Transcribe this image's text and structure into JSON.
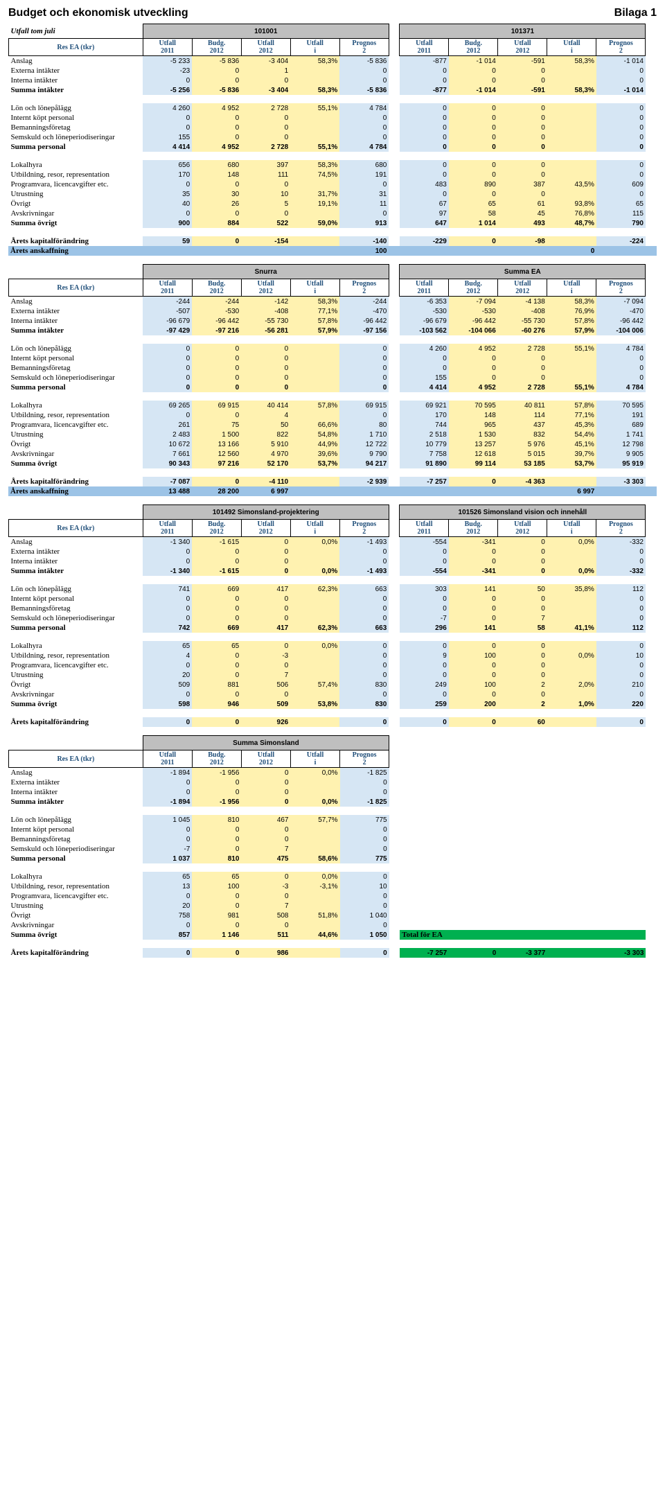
{
  "page": {
    "title": "Budget och ekonomisk utveckling",
    "annex": "Bilaga 1",
    "subtitle": "Utfall tom juli"
  },
  "headers": {
    "row_header": "Res EA (tkr)",
    "cols5": [
      "Utfall 2011",
      "Budg. 2012",
      "Utfall 2012",
      "Utfall i % av budget",
      "Prognos 2"
    ]
  },
  "row_labels": {
    "anslag": "Anslag",
    "ext": "Externa intäkter",
    "int": "Interna intäkter",
    "sumint": "Summa intäkter",
    "lon": "Lön och lönepålägg",
    "ikp": "Internt köpt personal",
    "bem": "Bemanningsföretag",
    "sem": "Semskuld och löneperiodiseringar",
    "sump": "Summa personal",
    "lok": "Lokalhyra",
    "utb": "Utbildning, resor, representation",
    "prog": "Programvara, licencavgifter etc.",
    "utr": "Utrustning",
    "ovr": "Övrigt",
    "avsk": "Avskrivningar",
    "sumo": "Summa övrigt",
    "kap": "Årets kapitalförändring",
    "ansk": "Årets anskaffning",
    "total": "Total för EA"
  },
  "groups": {
    "g101001": "101001",
    "g101371": "101371",
    "snurra": "Snurra",
    "summaEA": "Summa EA",
    "g101492": "101492 Simonsland-projektering",
    "g101526": "101526 Simonsland vision och innehåll",
    "sumsim": "Summa Simonsland"
  },
  "t1": {
    "left": {
      "anslag": [
        "-5 233",
        "-5 836",
        "-3 404",
        "58,3%",
        "-5 836"
      ],
      "ext": [
        "-23",
        "0",
        "1",
        "",
        "0"
      ],
      "int": [
        "0",
        "0",
        "0",
        "",
        "0"
      ],
      "sumint": [
        "-5 256",
        "-5 836",
        "-3 404",
        "58,3%",
        "-5 836"
      ],
      "lon": [
        "4 260",
        "4 952",
        "2 728",
        "55,1%",
        "4 784"
      ],
      "ikp": [
        "0",
        "0",
        "0",
        "",
        "0"
      ],
      "bem": [
        "0",
        "0",
        "0",
        "",
        "0"
      ],
      "sem": [
        "155",
        "0",
        "0",
        "",
        "0"
      ],
      "sump": [
        "4 414",
        "4 952",
        "2 728",
        "55,1%",
        "4 784"
      ],
      "lok": [
        "656",
        "680",
        "397",
        "58,3%",
        "680"
      ],
      "utb": [
        "170",
        "148",
        "111",
        "74,5%",
        "191"
      ],
      "prog": [
        "0",
        "0",
        "0",
        "",
        "0"
      ],
      "utr": [
        "35",
        "30",
        "10",
        "31,7%",
        "31"
      ],
      "ovr": [
        "40",
        "26",
        "5",
        "19,1%",
        "11"
      ],
      "avsk": [
        "0",
        "0",
        "0",
        "",
        "0"
      ],
      "sumo": [
        "900",
        "884",
        "522",
        "59,0%",
        "913"
      ],
      "kap": [
        "59",
        "0",
        "-154",
        "",
        "-140"
      ]
    },
    "right": {
      "anslag": [
        "-877",
        "-1 014",
        "-591",
        "58,3%",
        "-1 014"
      ],
      "ext": [
        "0",
        "0",
        "0",
        "",
        "0"
      ],
      "int": [
        "0",
        "0",
        "0",
        "",
        "0"
      ],
      "sumint": [
        "-877",
        "-1 014",
        "-591",
        "58,3%",
        "-1 014"
      ],
      "lon": [
        "0",
        "0",
        "0",
        "",
        "0"
      ],
      "ikp": [
        "0",
        "0",
        "0",
        "",
        "0"
      ],
      "bem": [
        "0",
        "0",
        "0",
        "",
        "0"
      ],
      "sem": [
        "0",
        "0",
        "0",
        "",
        "0"
      ],
      "sump": [
        "0",
        "0",
        "0",
        "",
        "0"
      ],
      "lok": [
        "0",
        "0",
        "0",
        "",
        "0"
      ],
      "utb": [
        "0",
        "0",
        "0",
        "",
        "0"
      ],
      "prog": [
        "483",
        "890",
        "387",
        "43,5%",
        "609"
      ],
      "utr": [
        "0",
        "0",
        "0",
        "",
        "0"
      ],
      "ovr": [
        "67",
        "65",
        "61",
        "93,8%",
        "65"
      ],
      "avsk": [
        "97",
        "58",
        "45",
        "76,8%",
        "115"
      ],
      "sumo": [
        "647",
        "1 014",
        "493",
        "48,7%",
        "790"
      ],
      "kap": [
        "-229",
        "0",
        "-98",
        "",
        "-224"
      ]
    },
    "ansk": [
      "",
      "",
      "",
      "",
      "100",
      "",
      "",
      "",
      "0",
      "",
      ""
    ]
  },
  "t2": {
    "left": {
      "anslag": [
        "-244",
        "-244",
        "-142",
        "58,3%",
        "-244"
      ],
      "ext": [
        "-507",
        "-530",
        "-408",
        "77,1%",
        "-470"
      ],
      "int": [
        "-96 679",
        "-96 442",
        "-55 730",
        "57,8%",
        "-96 442"
      ],
      "sumint": [
        "-97 429",
        "-97 216",
        "-56 281",
        "57,9%",
        "-97 156"
      ],
      "lon": [
        "0",
        "0",
        "0",
        "",
        "0"
      ],
      "ikp": [
        "0",
        "0",
        "0",
        "",
        "0"
      ],
      "bem": [
        "0",
        "0",
        "0",
        "",
        "0"
      ],
      "sem": [
        "0",
        "0",
        "0",
        "",
        "0"
      ],
      "sump": [
        "0",
        "0",
        "0",
        "",
        "0"
      ],
      "lok": [
        "69 265",
        "69 915",
        "40 414",
        "57,8%",
        "69 915"
      ],
      "utb": [
        "0",
        "0",
        "4",
        "",
        "0"
      ],
      "prog": [
        "261",
        "75",
        "50",
        "66,6%",
        "80"
      ],
      "utr": [
        "2 483",
        "1 500",
        "822",
        "54,8%",
        "1 710"
      ],
      "ovr": [
        "10 672",
        "13 166",
        "5 910",
        "44,9%",
        "12 722"
      ],
      "avsk": [
        "7 661",
        "12 560",
        "4 970",
        "39,6%",
        "9 790"
      ],
      "sumo": [
        "90 343",
        "97 216",
        "52 170",
        "53,7%",
        "94 217"
      ],
      "kap": [
        "-7 087",
        "0",
        "-4 110",
        "",
        "-2 939"
      ]
    },
    "right": {
      "anslag": [
        "-6 353",
        "-7 094",
        "-4 138",
        "58,3%",
        "-7 094"
      ],
      "ext": [
        "-530",
        "-530",
        "-408",
        "76,9%",
        "-470"
      ],
      "int": [
        "-96 679",
        "-96 442",
        "-55 730",
        "57,8%",
        "-96 442"
      ],
      "sumint": [
        "-103 562",
        "-104 066",
        "-60 276",
        "57,9%",
        "-104 006"
      ],
      "lon": [
        "4 260",
        "4 952",
        "2 728",
        "55,1%",
        "4 784"
      ],
      "ikp": [
        "0",
        "0",
        "0",
        "",
        "0"
      ],
      "bem": [
        "0",
        "0",
        "0",
        "",
        "0"
      ],
      "sem": [
        "155",
        "0",
        "0",
        "",
        "0"
      ],
      "sump": [
        "4 414",
        "4 952",
        "2 728",
        "55,1%",
        "4 784"
      ],
      "lok": [
        "69 921",
        "70 595",
        "40 811",
        "57,8%",
        "70 595"
      ],
      "utb": [
        "170",
        "148",
        "114",
        "77,1%",
        "191"
      ],
      "prog": [
        "744",
        "965",
        "437",
        "45,3%",
        "689"
      ],
      "utr": [
        "2 518",
        "1 530",
        "832",
        "54,4%",
        "1 741"
      ],
      "ovr": [
        "10 779",
        "13 257",
        "5 976",
        "45,1%",
        "12 798"
      ],
      "avsk": [
        "7 758",
        "12 618",
        "5 015",
        "39,7%",
        "9 905"
      ],
      "sumo": [
        "91 890",
        "99 114",
        "53 185",
        "53,7%",
        "95 919"
      ],
      "kap": [
        "-7 257",
        "0",
        "-4 363",
        "",
        "-3 303"
      ]
    },
    "ansk": [
      "13 488",
      "28 200",
      "6 997",
      "",
      "",
      "",
      "",
      "",
      "6 997",
      "",
      ""
    ]
  },
  "t3": {
    "left": {
      "anslag": [
        "-1 340",
        "-1 615",
        "0",
        "0,0%",
        "-1 493"
      ],
      "ext": [
        "0",
        "0",
        "0",
        "",
        "0"
      ],
      "int": [
        "0",
        "0",
        "0",
        "",
        "0"
      ],
      "sumint": [
        "-1 340",
        "-1 615",
        "0",
        "0,0%",
        "-1 493"
      ],
      "lon": [
        "741",
        "669",
        "417",
        "62,3%",
        "663"
      ],
      "ikp": [
        "0",
        "0",
        "0",
        "",
        "0"
      ],
      "bem": [
        "0",
        "0",
        "0",
        "",
        "0"
      ],
      "sem": [
        "0",
        "0",
        "0",
        "",
        "0"
      ],
      "sump": [
        "742",
        "669",
        "417",
        "62,3%",
        "663"
      ],
      "lok": [
        "65",
        "65",
        "0",
        "0,0%",
        "0"
      ],
      "utb": [
        "4",
        "0",
        "-3",
        "",
        "0"
      ],
      "prog": [
        "0",
        "0",
        "0",
        "",
        "0"
      ],
      "utr": [
        "20",
        "0",
        "7",
        "",
        "0"
      ],
      "ovr": [
        "509",
        "881",
        "506",
        "57,4%",
        "830"
      ],
      "avsk": [
        "0",
        "0",
        "0",
        "",
        "0"
      ],
      "sumo": [
        "598",
        "946",
        "509",
        "53,8%",
        "830"
      ],
      "kap": [
        "0",
        "0",
        "926",
        "",
        "0"
      ]
    },
    "right": {
      "anslag": [
        "-554",
        "-341",
        "0",
        "0,0%",
        "-332"
      ],
      "ext": [
        "0",
        "0",
        "0",
        "",
        "0"
      ],
      "int": [
        "0",
        "0",
        "0",
        "",
        "0"
      ],
      "sumint": [
        "-554",
        "-341",
        "0",
        "0,0%",
        "-332"
      ],
      "lon": [
        "303",
        "141",
        "50",
        "35,8%",
        "112"
      ],
      "ikp": [
        "0",
        "0",
        "0",
        "",
        "0"
      ],
      "bem": [
        "0",
        "0",
        "0",
        "",
        "0"
      ],
      "sem": [
        "-7",
        "0",
        "7",
        "",
        "0"
      ],
      "sump": [
        "296",
        "141",
        "58",
        "41,1%",
        "112"
      ],
      "lok": [
        "0",
        "0",
        "0",
        "",
        "0"
      ],
      "utb": [
        "9",
        "100",
        "0",
        "0,0%",
        "10"
      ],
      "prog": [
        "0",
        "0",
        "0",
        "",
        "0"
      ],
      "utr": [
        "0",
        "0",
        "0",
        "",
        "0"
      ],
      "ovr": [
        "249",
        "100",
        "2",
        "2,0%",
        "210"
      ],
      "avsk": [
        "0",
        "0",
        "0",
        "",
        "0"
      ],
      "sumo": [
        "259",
        "200",
        "2",
        "1,0%",
        "220"
      ],
      "kap": [
        "0",
        "0",
        "60",
        "",
        "0"
      ]
    }
  },
  "t4": {
    "left": {
      "anslag": [
        "-1 894",
        "-1 956",
        "0",
        "0,0%",
        "-1 825"
      ],
      "ext": [
        "0",
        "0",
        "0",
        "",
        "0"
      ],
      "int": [
        "0",
        "0",
        "0",
        "",
        "0"
      ],
      "sumint": [
        "-1 894",
        "-1 956",
        "0",
        "0,0%",
        "-1 825"
      ],
      "lon": [
        "1 045",
        "810",
        "467",
        "57,7%",
        "775"
      ],
      "ikp": [
        "0",
        "0",
        "0",
        "",
        "0"
      ],
      "bem": [
        "0",
        "0",
        "0",
        "",
        "0"
      ],
      "sem": [
        "-7",
        "0",
        "7",
        "",
        "0"
      ],
      "sump": [
        "1 037",
        "810",
        "475",
        "58,6%",
        "775"
      ],
      "lok": [
        "65",
        "65",
        "0",
        "0,0%",
        "0"
      ],
      "utb": [
        "13",
        "100",
        "-3",
        "-3,1%",
        "10"
      ],
      "prog": [
        "0",
        "0",
        "0",
        "",
        "0"
      ],
      "utr": [
        "20",
        "0",
        "7",
        "",
        "0"
      ],
      "ovr": [
        "758",
        "981",
        "508",
        "51,8%",
        "1 040"
      ],
      "avsk": [
        "0",
        "0",
        "0",
        "",
        "0"
      ],
      "sumo": [
        "857",
        "1 146",
        "511",
        "44,6%",
        "1 050"
      ],
      "kap": [
        "0",
        "0",
        "986",
        "",
        "0"
      ]
    },
    "total": [
      "-7 257",
      "0",
      "-3 377",
      "",
      "-3 303"
    ]
  },
  "style": {
    "blue": "#d6e6f4",
    "yellow": "#fff2b0",
    "gray": "#bfbfbf",
    "anskBlue": "#9cc3e6",
    "green": "#00b050"
  }
}
